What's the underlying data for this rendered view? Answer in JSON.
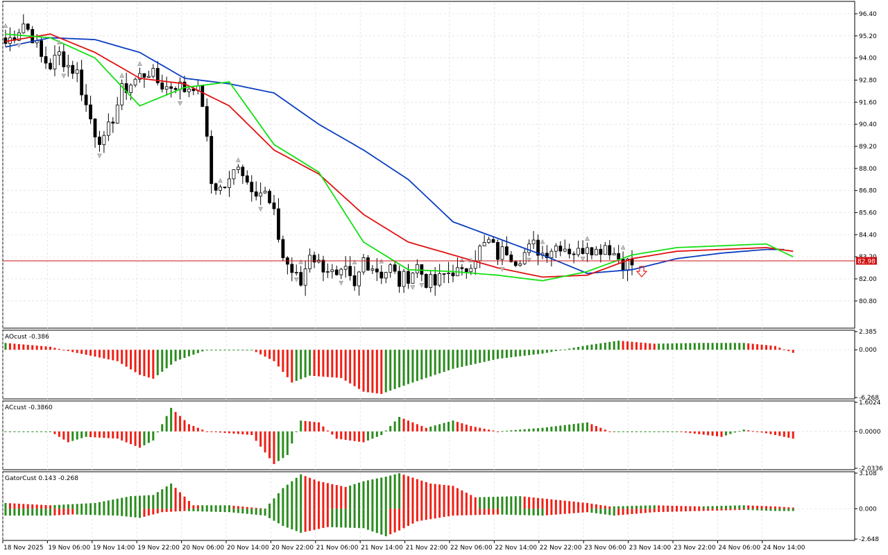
{
  "chart_data": {
    "type": "candlestick",
    "price_axis": {
      "ticks": [
        "96.40",
        "95.20",
        "94.00",
        "92.80",
        "91.60",
        "90.40",
        "89.20",
        "88.00",
        "86.80",
        "85.60",
        "84.40",
        "83.20",
        "82.00",
        "80.80"
      ],
      "range": [
        79.4,
        97.0
      ],
      "current_price": "82.98",
      "current_price_value": 82.98
    },
    "time_axis": {
      "labels": [
        "18 Nov 2025",
        "19 Nov 06:00",
        "19 Nov 14:00",
        "19 Nov 22:00",
        "20 Nov 06:00",
        "20 Nov 14:00",
        "20 Nov 22:00",
        "21 Nov 06:00",
        "21 Nov 14:00",
        "21 Nov 22:00",
        "22 Nov 06:00",
        "22 Nov 14:00",
        "22 Nov 22:00",
        "23 Nov 06:00",
        "23 Nov 14:00",
        "23 Nov 22:00",
        "24 Nov 06:00",
        "24 Nov 14:00"
      ]
    },
    "price_anchors": [
      [
        0,
        94.8
      ],
      [
        2,
        95.3
      ],
      [
        4,
        95.9
      ],
      [
        6,
        95.2
      ],
      [
        8,
        94.0
      ],
      [
        10,
        93.6
      ],
      [
        12,
        94.2
      ],
      [
        14,
        93.6
      ],
      [
        16,
        93.2
      ],
      [
        18,
        91.4
      ],
      [
        20,
        90.0
      ],
      [
        22,
        89.4
      ],
      [
        24,
        90.8
      ],
      [
        26,
        92.2
      ],
      [
        28,
        92.6
      ],
      [
        30,
        93.0
      ],
      [
        32,
        93.3
      ],
      [
        34,
        92.7
      ],
      [
        36,
        92.4
      ],
      [
        38,
        92.6
      ],
      [
        40,
        92.3
      ],
      [
        42,
        92.6
      ],
      [
        44,
        91.6
      ],
      [
        46,
        87.2
      ],
      [
        48,
        86.9
      ],
      [
        50,
        87.2
      ],
      [
        52,
        88.4
      ],
      [
        54,
        87.3
      ],
      [
        56,
        86.9
      ],
      [
        58,
        86.6
      ],
      [
        60,
        85.4
      ],
      [
        62,
        83.2
      ],
      [
        64,
        82.4
      ],
      [
        66,
        81.7
      ],
      [
        68,
        83.5
      ],
      [
        70,
        82.8
      ],
      [
        72,
        82.6
      ],
      [
        74,
        81.9
      ],
      [
        76,
        82.3
      ],
      [
        78,
        81.4
      ],
      [
        80,
        83.1
      ],
      [
        82,
        82.7
      ],
      [
        84,
        82.3
      ],
      [
        86,
        82.6
      ],
      [
        88,
        81.8
      ],
      [
        90,
        82.2
      ],
      [
        92,
        82.7
      ],
      [
        94,
        81.9
      ],
      [
        96,
        81.7
      ],
      [
        98,
        82.2
      ],
      [
        100,
        82.5
      ],
      [
        102,
        82.2
      ],
      [
        104,
        83.0
      ],
      [
        106,
        83.6
      ],
      [
        108,
        84.0
      ],
      [
        110,
        83.3
      ],
      [
        112,
        83.6
      ],
      [
        114,
        83.1
      ],
      [
        116,
        83.4
      ],
      [
        118,
        83.8
      ],
      [
        120,
        83.4
      ],
      [
        122,
        83.7
      ],
      [
        124,
        83.9
      ],
      [
        126,
        83.6
      ],
      [
        128,
        83.4
      ],
      [
        130,
        84.0
      ],
      [
        132,
        83.5
      ],
      [
        134,
        83.9
      ],
      [
        136,
        83.4
      ],
      [
        138,
        82.9
      ],
      [
        140,
        82.8
      ]
    ],
    "moving_averages": [
      {
        "color": "#0a3ec0",
        "points": [
          [
            0,
            94.6
          ],
          [
            10,
            95.1
          ],
          [
            20,
            95.0
          ],
          [
            30,
            94.3
          ],
          [
            40,
            92.9
          ],
          [
            50,
            92.6
          ],
          [
            60,
            92.1
          ],
          [
            70,
            90.4
          ],
          [
            80,
            89.0
          ],
          [
            90,
            87.4
          ],
          [
            100,
            85.1
          ],
          [
            110,
            84.2
          ],
          [
            120,
            83.3
          ],
          [
            130,
            82.3
          ],
          [
            140,
            82.5
          ],
          [
            150,
            83.1
          ],
          [
            160,
            83.4
          ],
          [
            170,
            83.6
          ],
          [
            174,
            83.6
          ]
        ]
      },
      {
        "color": "#e01010",
        "points": [
          [
            0,
            94.9
          ],
          [
            10,
            95.3
          ],
          [
            20,
            94.3
          ],
          [
            30,
            92.9
          ],
          [
            40,
            92.6
          ],
          [
            50,
            91.4
          ],
          [
            60,
            89.0
          ],
          [
            70,
            87.7
          ],
          [
            80,
            85.5
          ],
          [
            90,
            84.0
          ],
          [
            100,
            83.3
          ],
          [
            110,
            82.6
          ],
          [
            120,
            82.1
          ],
          [
            130,
            82.2
          ],
          [
            140,
            83.1
          ],
          [
            150,
            83.5
          ],
          [
            160,
            83.6
          ],
          [
            170,
            83.7
          ],
          [
            176,
            83.5
          ]
        ]
      },
      {
        "color": "#12e012",
        "points": [
          [
            0,
            95.3
          ],
          [
            10,
            95.1
          ],
          [
            20,
            94.0
          ],
          [
            30,
            91.4
          ],
          [
            40,
            92.4
          ],
          [
            50,
            92.7
          ],
          [
            60,
            89.3
          ],
          [
            70,
            87.8
          ],
          [
            80,
            84.0
          ],
          [
            90,
            82.5
          ],
          [
            100,
            82.4
          ],
          [
            110,
            82.2
          ],
          [
            120,
            81.9
          ],
          [
            130,
            82.4
          ],
          [
            140,
            83.3
          ],
          [
            150,
            83.7
          ],
          [
            160,
            83.8
          ],
          [
            170,
            83.9
          ],
          [
            176,
            83.2
          ]
        ]
      }
    ],
    "indicators": [
      {
        "name": "AOcust",
        "value": "-0.386",
        "ticks": [
          "2.385",
          "0.000",
          "-6.268"
        ],
        "min": -6.268,
        "max": 2.385,
        "anchors": [
          [
            0,
            0.9
          ],
          [
            10,
            0.4
          ],
          [
            15,
            -0.3
          ],
          [
            25,
            -1.5
          ],
          [
            30,
            -3.3
          ],
          [
            33,
            -3.8
          ],
          [
            38,
            -1.5
          ],
          [
            45,
            0.0
          ],
          [
            55,
            0.0
          ],
          [
            60,
            -1.5
          ],
          [
            64,
            -4.3
          ],
          [
            68,
            -3.4
          ],
          [
            75,
            -3.7
          ],
          [
            80,
            -5.5
          ],
          [
            84,
            -5.8
          ],
          [
            90,
            -4.5
          ],
          [
            100,
            -2.5
          ],
          [
            110,
            -1.2
          ],
          [
            120,
            -0.5
          ],
          [
            130,
            0.6
          ],
          [
            137,
            1.2
          ],
          [
            145,
            0.8
          ],
          [
            155,
            0.9
          ],
          [
            165,
            0.9
          ],
          [
            172,
            0.5
          ],
          [
            176,
            -0.4
          ]
        ]
      },
      {
        "name": "ACcust",
        "value": "-0.3860",
        "ticks": [
          "1.6024",
          "0.0000",
          "-2.0336"
        ],
        "min": -2.0336,
        "max": 1.6024,
        "anchors": [
          [
            0,
            0.0
          ],
          [
            10,
            0.0
          ],
          [
            14,
            -0.6
          ],
          [
            18,
            -0.3
          ],
          [
            25,
            -0.4
          ],
          [
            30,
            -0.9
          ],
          [
            33,
            -0.5
          ],
          [
            37,
            1.3
          ],
          [
            41,
            0.4
          ],
          [
            45,
            0.0
          ],
          [
            55,
            -0.2
          ],
          [
            60,
            -1.8
          ],
          [
            63,
            -1.3
          ],
          [
            66,
            0.6
          ],
          [
            70,
            0.5
          ],
          [
            74,
            -0.4
          ],
          [
            80,
            -0.6
          ],
          [
            84,
            -0.2
          ],
          [
            88,
            0.8
          ],
          [
            94,
            0.2
          ],
          [
            100,
            0.6
          ],
          [
            104,
            0.3
          ],
          [
            110,
            0.0
          ],
          [
            120,
            0.2
          ],
          [
            130,
            0.5
          ],
          [
            135,
            0.0
          ],
          [
            140,
            0.0
          ],
          [
            150,
            0.0
          ],
          [
            160,
            -0.3
          ],
          [
            165,
            0.1
          ],
          [
            170,
            -0.1
          ],
          [
            176,
            -0.4
          ]
        ]
      },
      {
        "name": "GatorCust",
        "value": "0.143 -0.268",
        "ticks": [
          "3.108",
          "0.000",
          "-2.648"
        ],
        "min": -2.648,
        "max": 3.108,
        "upper": [
          [
            0,
            0.5
          ],
          [
            10,
            0.3
          ],
          [
            20,
            0.5
          ],
          [
            28,
            1.1
          ],
          [
            33,
            1.2
          ],
          [
            37,
            2.2
          ],
          [
            42,
            0.3
          ],
          [
            50,
            0.3
          ],
          [
            58,
            0.0
          ],
          [
            62,
            1.8
          ],
          [
            66,
            3.0
          ],
          [
            70,
            2.4
          ],
          [
            76,
            1.9
          ],
          [
            80,
            2.4
          ],
          [
            85,
            2.8
          ],
          [
            88,
            3.1
          ],
          [
            95,
            2.2
          ],
          [
            100,
            2.0
          ],
          [
            105,
            1.0
          ],
          [
            115,
            1.1
          ],
          [
            120,
            0.9
          ],
          [
            130,
            0.5
          ],
          [
            135,
            0.2
          ],
          [
            145,
            0.3
          ],
          [
            155,
            0.2
          ],
          [
            165,
            0.3
          ],
          [
            172,
            0.2
          ],
          [
            176,
            0.1
          ]
        ],
        "lower": [
          [
            0,
            -0.6
          ],
          [
            10,
            -0.6
          ],
          [
            15,
            -0.5
          ],
          [
            25,
            -0.6
          ],
          [
            30,
            -0.8
          ],
          [
            35,
            -0.3
          ],
          [
            40,
            -0.2
          ],
          [
            50,
            -0.3
          ],
          [
            58,
            -0.6
          ],
          [
            62,
            -1.5
          ],
          [
            66,
            -2.1
          ],
          [
            72,
            -1.6
          ],
          [
            80,
            -1.7
          ],
          [
            85,
            -2.4
          ],
          [
            88,
            -1.9
          ],
          [
            92,
            -1.1
          ],
          [
            100,
            -0.6
          ],
          [
            110,
            -0.5
          ],
          [
            120,
            -0.6
          ],
          [
            130,
            -0.3
          ],
          [
            136,
            -0.6
          ],
          [
            145,
            -0.3
          ],
          [
            155,
            -0.2
          ],
          [
            165,
            -0.1
          ],
          [
            172,
            -0.2
          ],
          [
            176,
            -0.2
          ]
        ]
      }
    ]
  },
  "colors": {
    "bull": "#ffffff",
    "bear": "#000000",
    "grid": "#dcdcdc",
    "up_bar": "#2a8c1e",
    "down_bar": "#f01e14",
    "price_line": "#d01010",
    "arrow": "#c0c0c0"
  }
}
